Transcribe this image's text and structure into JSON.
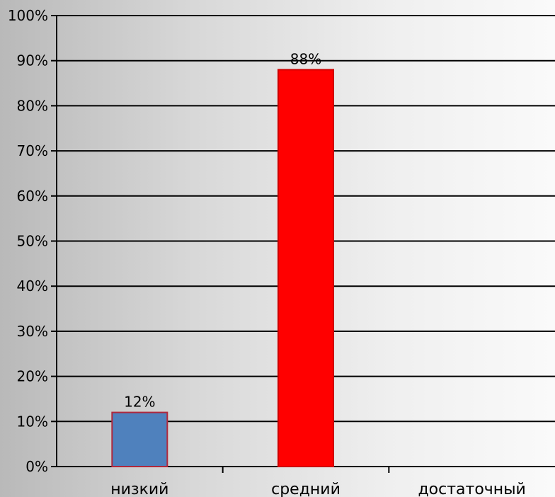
{
  "chart_data": {
    "type": "bar",
    "categories": [
      "низкий",
      "средний",
      "достаточный"
    ],
    "values": [
      12,
      88,
      0
    ],
    "data_labels": [
      "12%",
      "88%",
      ""
    ],
    "ylim": [
      0,
      100
    ],
    "y_ticks": [
      "0%",
      "10%",
      "20%",
      "30%",
      "40%",
      "50%",
      "60%",
      "70%",
      "80%",
      "90%",
      "100%"
    ],
    "grid": true,
    "colors": {
      "bars": [
        "#4f81bd",
        "#ff0000",
        "#ff0000"
      ],
      "bar_borders": [
        "#b0283c",
        "#d00000",
        "#d00000"
      ],
      "grid": "#000000"
    }
  }
}
